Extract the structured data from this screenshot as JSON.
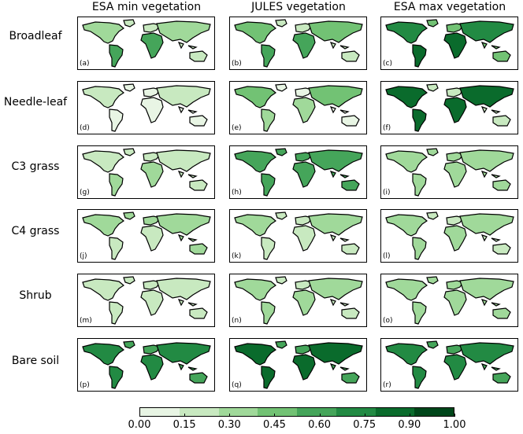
{
  "column_titles": [
    "ESA min vegetation",
    "JULES vegetation",
    "ESA max vegetation"
  ],
  "row_labels": [
    "Broadleaf",
    "Needle-leaf",
    "C3 grass",
    "C4 grass",
    "Shrub",
    "Bare soil"
  ],
  "panel_tags": [
    "(a)",
    "(b)",
    "(c)",
    "(d)",
    "(e)",
    "(f)",
    "(g)",
    "(h)",
    "(i)",
    "(j)",
    "(k)",
    "(l)",
    "(m)",
    "(n)",
    "(o)",
    "(p)",
    "(q)",
    "(r)"
  ],
  "colorbar": {
    "ticks": [
      "0.00",
      "0.15",
      "0.30",
      "0.45",
      "0.60",
      "0.75",
      "0.90",
      "1.00"
    ],
    "colors": [
      "#e8f5e4",
      "#c8e9c0",
      "#a0d99a",
      "#72c274",
      "#45a55a",
      "#228a43",
      "#0a6b2c",
      "#00461a"
    ]
  },
  "regions": {
    "Broadleaf": [
      [
        0.55,
        0.35,
        0.15
      ],
      [
        0.6,
        0.4,
        0.2
      ],
      [
        0.85,
        0.65,
        0.45
      ]
    ],
    "Needle-leaf": [
      [
        0.1,
        0.15,
        0.05
      ],
      [
        0.35,
        0.4,
        0.1
      ],
      [
        0.75,
        0.85,
        0.2
      ]
    ],
    "C3 grass": [
      [
        0.25,
        0.2,
        0.2
      ],
      [
        0.55,
        0.55,
        0.5
      ],
      [
        0.3,
        0.35,
        0.25
      ]
    ],
    "C4 grass": [
      [
        0.2,
        0.35,
        0.25
      ],
      [
        0.2,
        0.25,
        0.15
      ],
      [
        0.25,
        0.35,
        0.2
      ]
    ],
    "Shrub": [
      [
        0.15,
        0.2,
        0.15
      ],
      [
        0.25,
        0.3,
        0.2
      ],
      [
        0.3,
        0.35,
        0.25
      ]
    ],
    "Bare soil": [
      [
        0.7,
        0.65,
        0.55
      ],
      [
        0.8,
        0.75,
        0.6
      ],
      [
        0.7,
        0.65,
        0.55
      ]
    ]
  }
}
